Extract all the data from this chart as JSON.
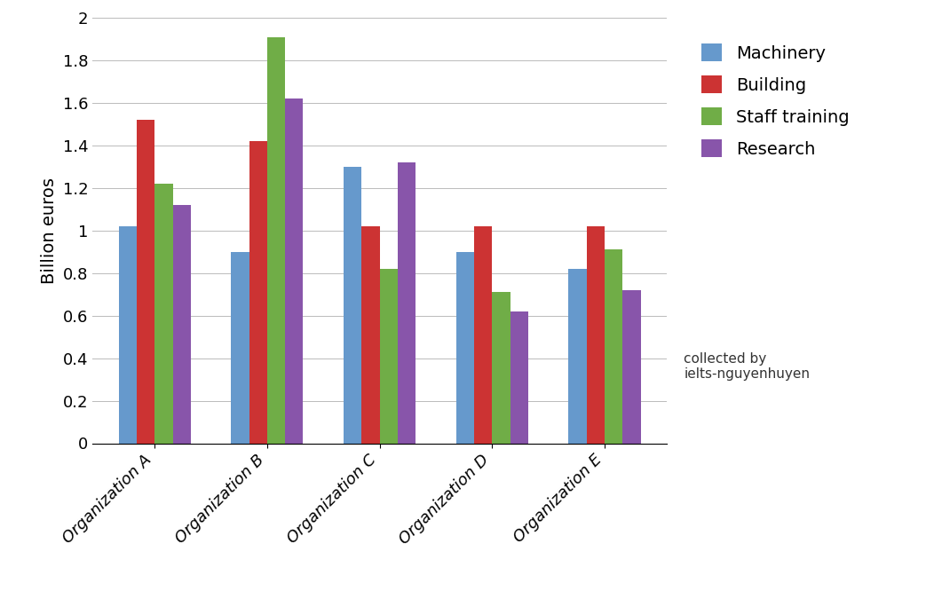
{
  "categories": [
    "Organization A",
    "Organization B",
    "Organization C",
    "Organization D",
    "Organization E"
  ],
  "series": {
    "Machinery": [
      1.02,
      0.9,
      1.3,
      0.9,
      0.82
    ],
    "Building": [
      1.52,
      1.42,
      1.02,
      1.02,
      1.02
    ],
    "Staff training": [
      1.22,
      1.91,
      0.82,
      0.71,
      0.91
    ],
    "Research": [
      1.12,
      1.62,
      1.32,
      0.62,
      0.72
    ]
  },
  "colors": {
    "Machinery": "#6699CC",
    "Building": "#CC3333",
    "Staff training": "#70AD47",
    "Research": "#8855AA"
  },
  "ylabel": "Billion euros",
  "ylim": [
    0,
    2.0
  ],
  "ytick_vals": [
    0,
    0.2,
    0.4,
    0.6,
    0.8,
    1.0,
    1.2,
    1.4,
    1.6,
    1.8,
    2.0
  ],
  "ytick_labels": [
    "0",
    "0.2",
    "0.4",
    "0.6",
    "0.8",
    "1",
    "1.2",
    "1.4",
    "1.6",
    "1.8",
    "2"
  ],
  "annotation": "collected by\nielts-nguyenhuyen",
  "annotation_fontsize": 11,
  "legend_fontsize": 14,
  "ylabel_fontsize": 14,
  "tick_fontsize": 13,
  "background_color": "#ffffff",
  "grid_color": "#bbbbbb",
  "bar_width": 0.16,
  "fig_width": 10.43,
  "fig_height": 6.66
}
